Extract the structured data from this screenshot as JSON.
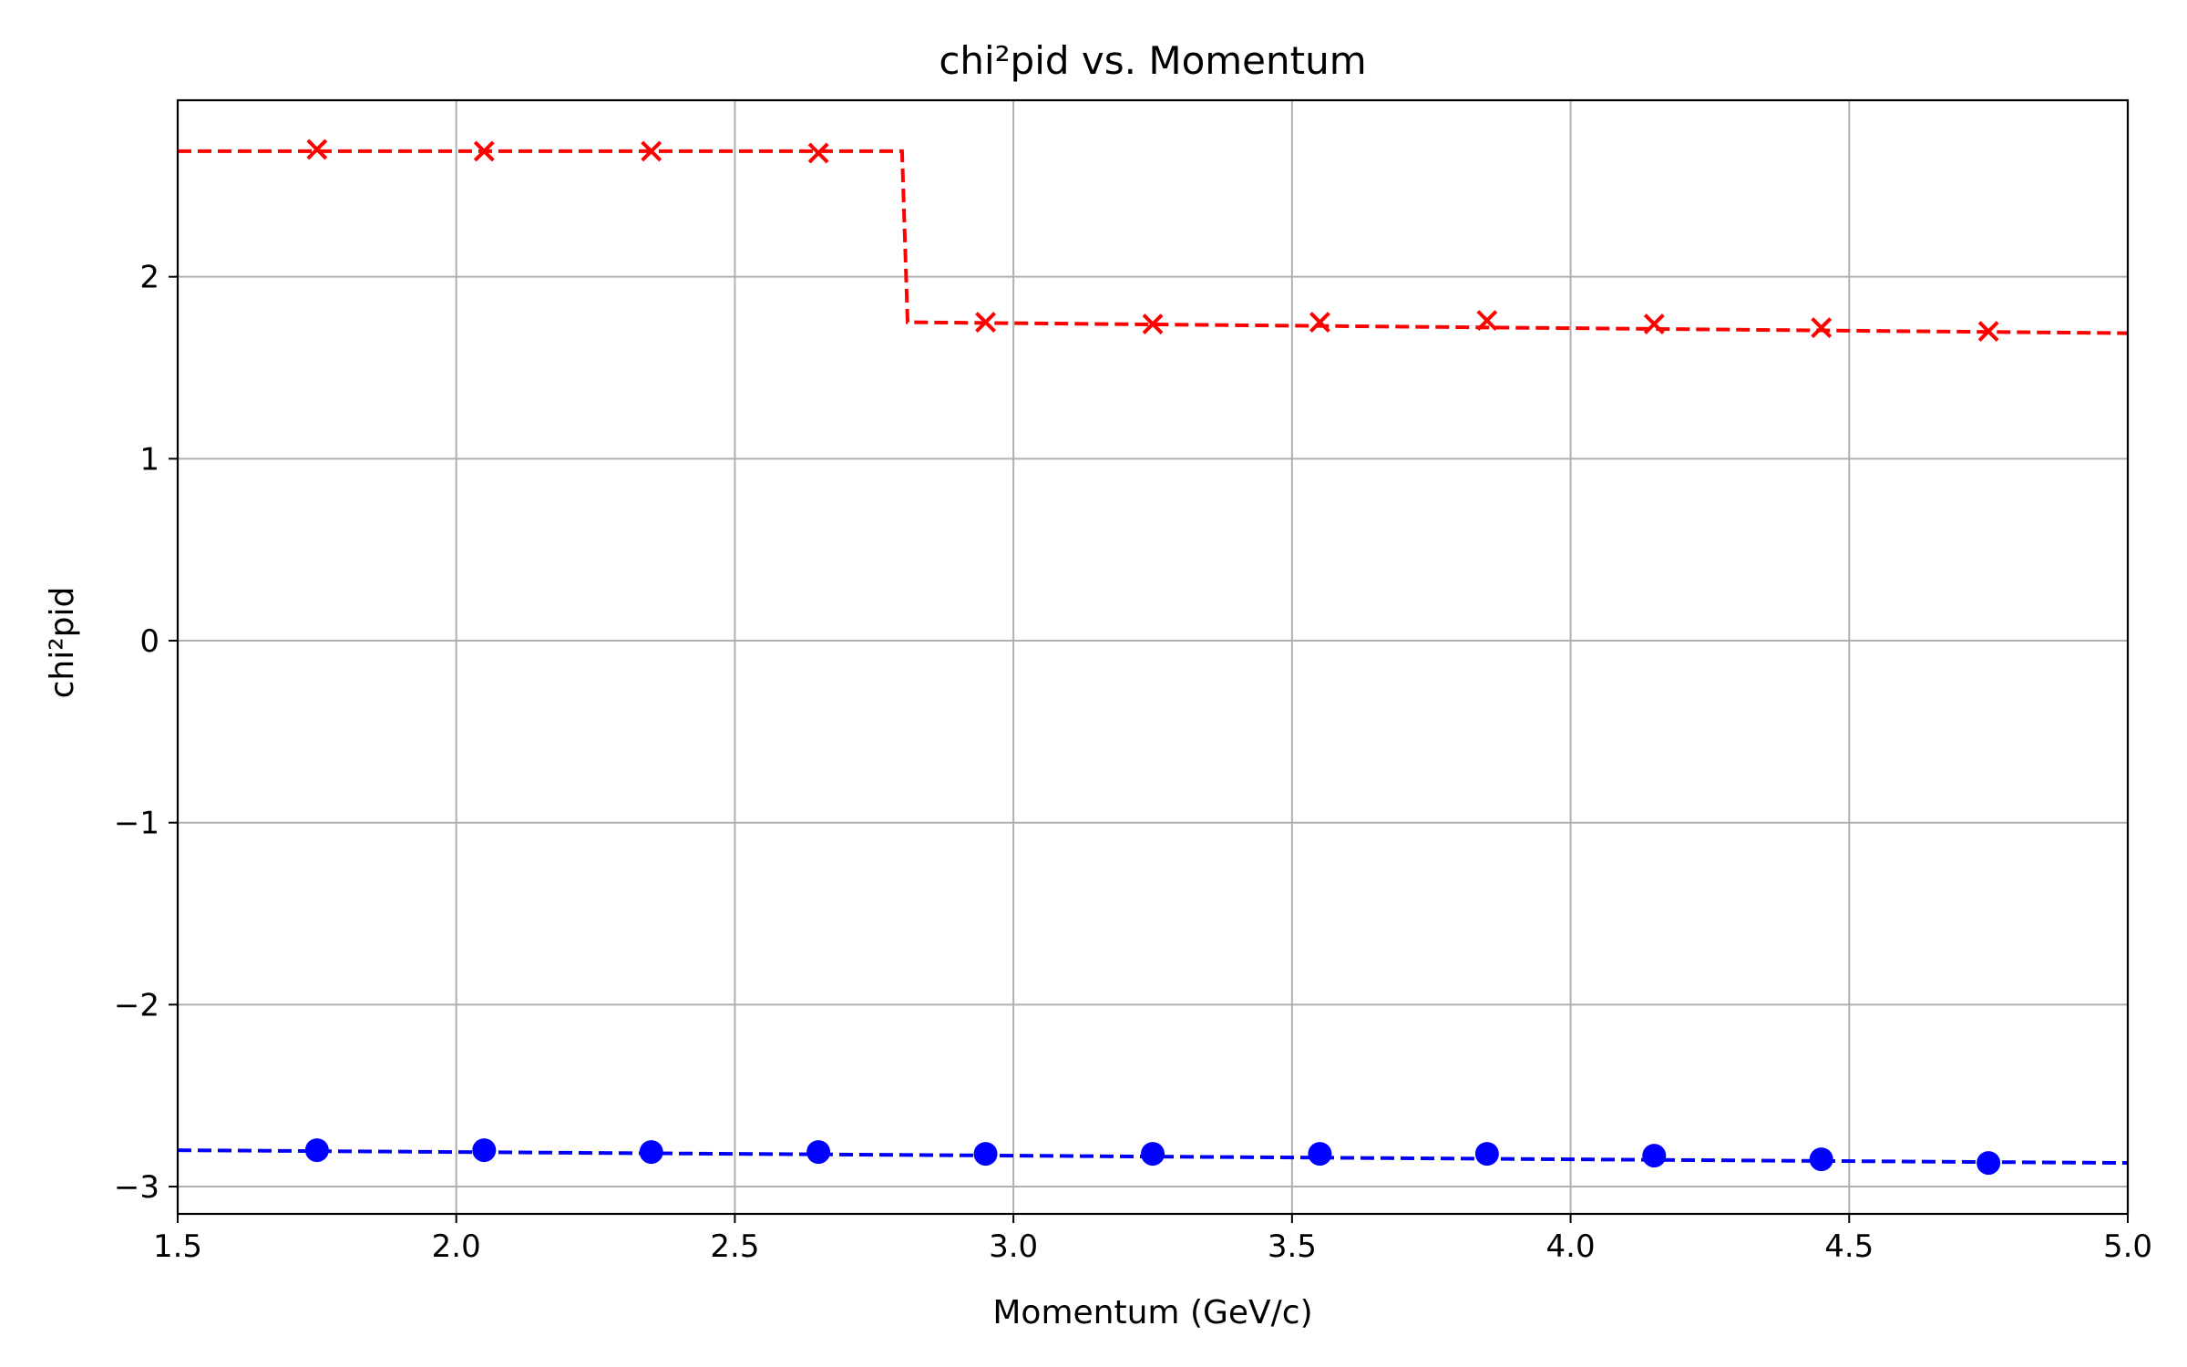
{
  "chart_data": {
    "type": "line",
    "title": "chi²pid vs. Momentum",
    "xlabel": "Momentum (GeV/c)",
    "ylabel": "chi²pid",
    "xlim": [
      1.5,
      5.0
    ],
    "ylim": [
      -3.15,
      2.97
    ],
    "xticks": [
      1.5,
      2.0,
      2.5,
      3.0,
      3.5,
      4.0,
      4.5,
      5.0
    ],
    "xtick_labels": [
      "1.5",
      "2.0",
      "2.5",
      "3.0",
      "3.5",
      "4.0",
      "4.5",
      "5.0"
    ],
    "yticks": [
      -3,
      -2,
      -1,
      0,
      1,
      2
    ],
    "ytick_labels": [
      "−3",
      "−2",
      "−1",
      "0",
      "1",
      "2"
    ],
    "grid": true,
    "series": [
      {
        "color": "#ff0000",
        "marker": "x",
        "x": [
          1.75,
          2.05,
          2.35,
          2.65,
          2.95,
          3.25,
          3.55,
          3.85,
          4.15,
          4.45,
          4.75
        ],
        "y": [
          2.7,
          2.69,
          2.69,
          2.68,
          1.75,
          1.74,
          1.75,
          1.76,
          1.74,
          1.72,
          1.7
        ],
        "fit": {
          "color": "#ff0000",
          "style": "dashed",
          "x": [
            1.5,
            2.8,
            2.81,
            5.0
          ],
          "y": [
            2.69,
            2.69,
            1.75,
            1.69
          ]
        }
      },
      {
        "color": "#0000ff",
        "marker": "o",
        "x": [
          1.75,
          2.05,
          2.35,
          2.65,
          2.95,
          3.25,
          3.55,
          3.85,
          4.15,
          4.45,
          4.75
        ],
        "y": [
          -2.8,
          -2.8,
          -2.81,
          -2.81,
          -2.82,
          -2.82,
          -2.82,
          -2.82,
          -2.83,
          -2.85,
          -2.87
        ],
        "fit": {
          "color": "#0000ff",
          "style": "dashed",
          "x": [
            1.5,
            5.0
          ],
          "y": [
            -2.8,
            -2.87
          ]
        }
      }
    ]
  }
}
